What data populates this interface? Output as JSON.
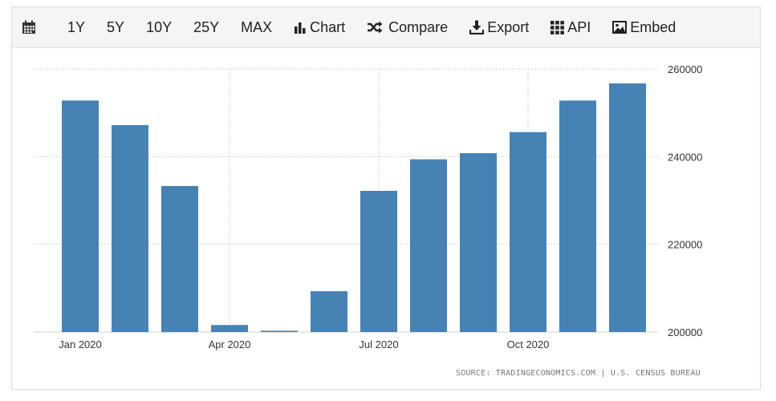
{
  "toolbar": {
    "calendar_icon": "calendar-icon",
    "items": [
      {
        "label": "1Y"
      },
      {
        "label": "5Y"
      },
      {
        "label": "10Y"
      },
      {
        "label": "25Y"
      },
      {
        "label": "MAX"
      },
      {
        "label": "Chart",
        "icon": "bar-chart-icon"
      },
      {
        "label": "Compare",
        "icon": "shuffle-icon"
      },
      {
        "label": "Export",
        "icon": "download-icon"
      },
      {
        "label": "API",
        "icon": "grid-icon"
      },
      {
        "label": "Embed",
        "icon": "image-icon"
      }
    ]
  },
  "source": "SOURCE: TRADINGECONOMICS.COM | U.S. CENSUS BUREAU",
  "chart_data": {
    "type": "bar",
    "categories": [
      "Jan 2020",
      "Feb 2020",
      "Mar 2020",
      "Apr 2020",
      "May 2020",
      "Jun 2020",
      "Jul 2020",
      "Aug 2020",
      "Sep 2020",
      "Oct 2020",
      "Nov 2020",
      "Dec 2020"
    ],
    "x_tick_labels": [
      "Jan 2020",
      "Apr 2020",
      "Jul 2020",
      "Oct 2020"
    ],
    "values": [
      252800,
      247200,
      233300,
      201600,
      200300,
      209300,
      232200,
      239400,
      240800,
      245600,
      252800,
      256700
    ],
    "ylim": [
      200000,
      260000
    ],
    "y_ticks": [
      200000,
      220000,
      240000,
      260000
    ],
    "y_axis_side": "right",
    "grid": true,
    "bar_color": "#4682b4",
    "grid_color": "#d0d0d0"
  }
}
